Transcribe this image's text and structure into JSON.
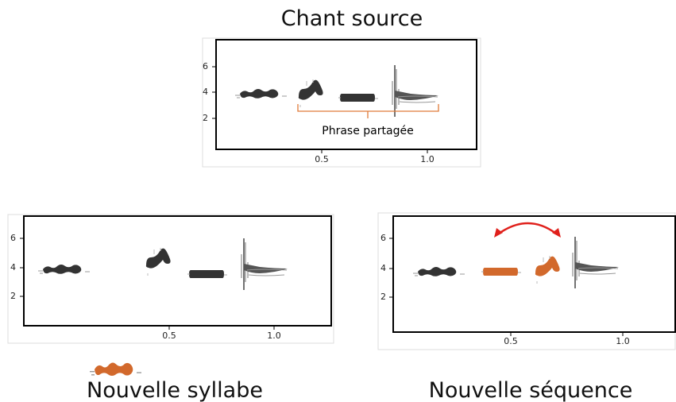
{
  "panels": [
    {
      "label": "Chant source",
      "yticks": [
        "6",
        "4",
        "2"
      ],
      "xticks": [
        "0.5",
        "1.0"
      ],
      "annotation": "Phrase partagée"
    },
    {
      "label": "Nouvelle syllabe",
      "yticks": [
        "6",
        "4",
        "2"
      ],
      "xticks": [
        "0.5",
        "1.0"
      ]
    },
    {
      "label": "Nouvelle séquence",
      "yticks": [
        "6",
        "4",
        "2"
      ],
      "xticks": [
        "0.5",
        "1.0"
      ]
    }
  ]
}
